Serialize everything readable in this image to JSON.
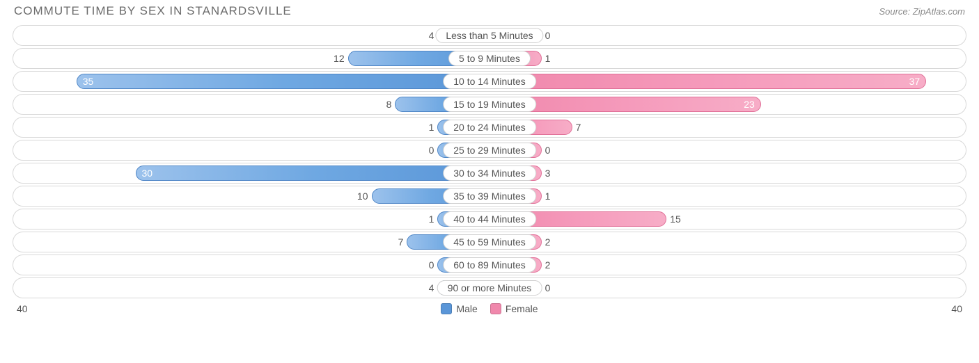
{
  "header": {
    "title": "COMMUTE TIME BY SEX IN STANARDSVILLE",
    "source": "Source: ZipAtlas.com"
  },
  "chart": {
    "type": "diverging-bar",
    "max_value": 40,
    "min_bar_width_pct": 11,
    "colors": {
      "male_gradient_start": "#9cc2ec",
      "male_gradient_end": "#5a96d8",
      "male_border": "#4f86c6",
      "female_gradient_start": "#f088ac",
      "female_gradient_end": "#f7adc7",
      "female_border": "#e06f97",
      "row_border": "#d8d8d8",
      "background": "#ffffff",
      "text": "#555555",
      "title_text": "#6b6b6b"
    },
    "categories": [
      {
        "label": "Less than 5 Minutes",
        "male": 4,
        "female": 0
      },
      {
        "label": "5 to 9 Minutes",
        "male": 12,
        "female": 1
      },
      {
        "label": "10 to 14 Minutes",
        "male": 35,
        "female": 37
      },
      {
        "label": "15 to 19 Minutes",
        "male": 8,
        "female": 23
      },
      {
        "label": "20 to 24 Minutes",
        "male": 1,
        "female": 7
      },
      {
        "label": "25 to 29 Minutes",
        "male": 0,
        "female": 0
      },
      {
        "label": "30 to 34 Minutes",
        "male": 30,
        "female": 3
      },
      {
        "label": "35 to 39 Minutes",
        "male": 10,
        "female": 1
      },
      {
        "label": "40 to 44 Minutes",
        "male": 1,
        "female": 15
      },
      {
        "label": "45 to 59 Minutes",
        "male": 7,
        "female": 2
      },
      {
        "label": "60 to 89 Minutes",
        "male": 0,
        "female": 2
      },
      {
        "label": "90 or more Minutes",
        "male": 4,
        "female": 0
      }
    ],
    "axis": {
      "left": "40",
      "right": "40"
    },
    "legend": {
      "male": "Male",
      "female": "Female"
    }
  }
}
